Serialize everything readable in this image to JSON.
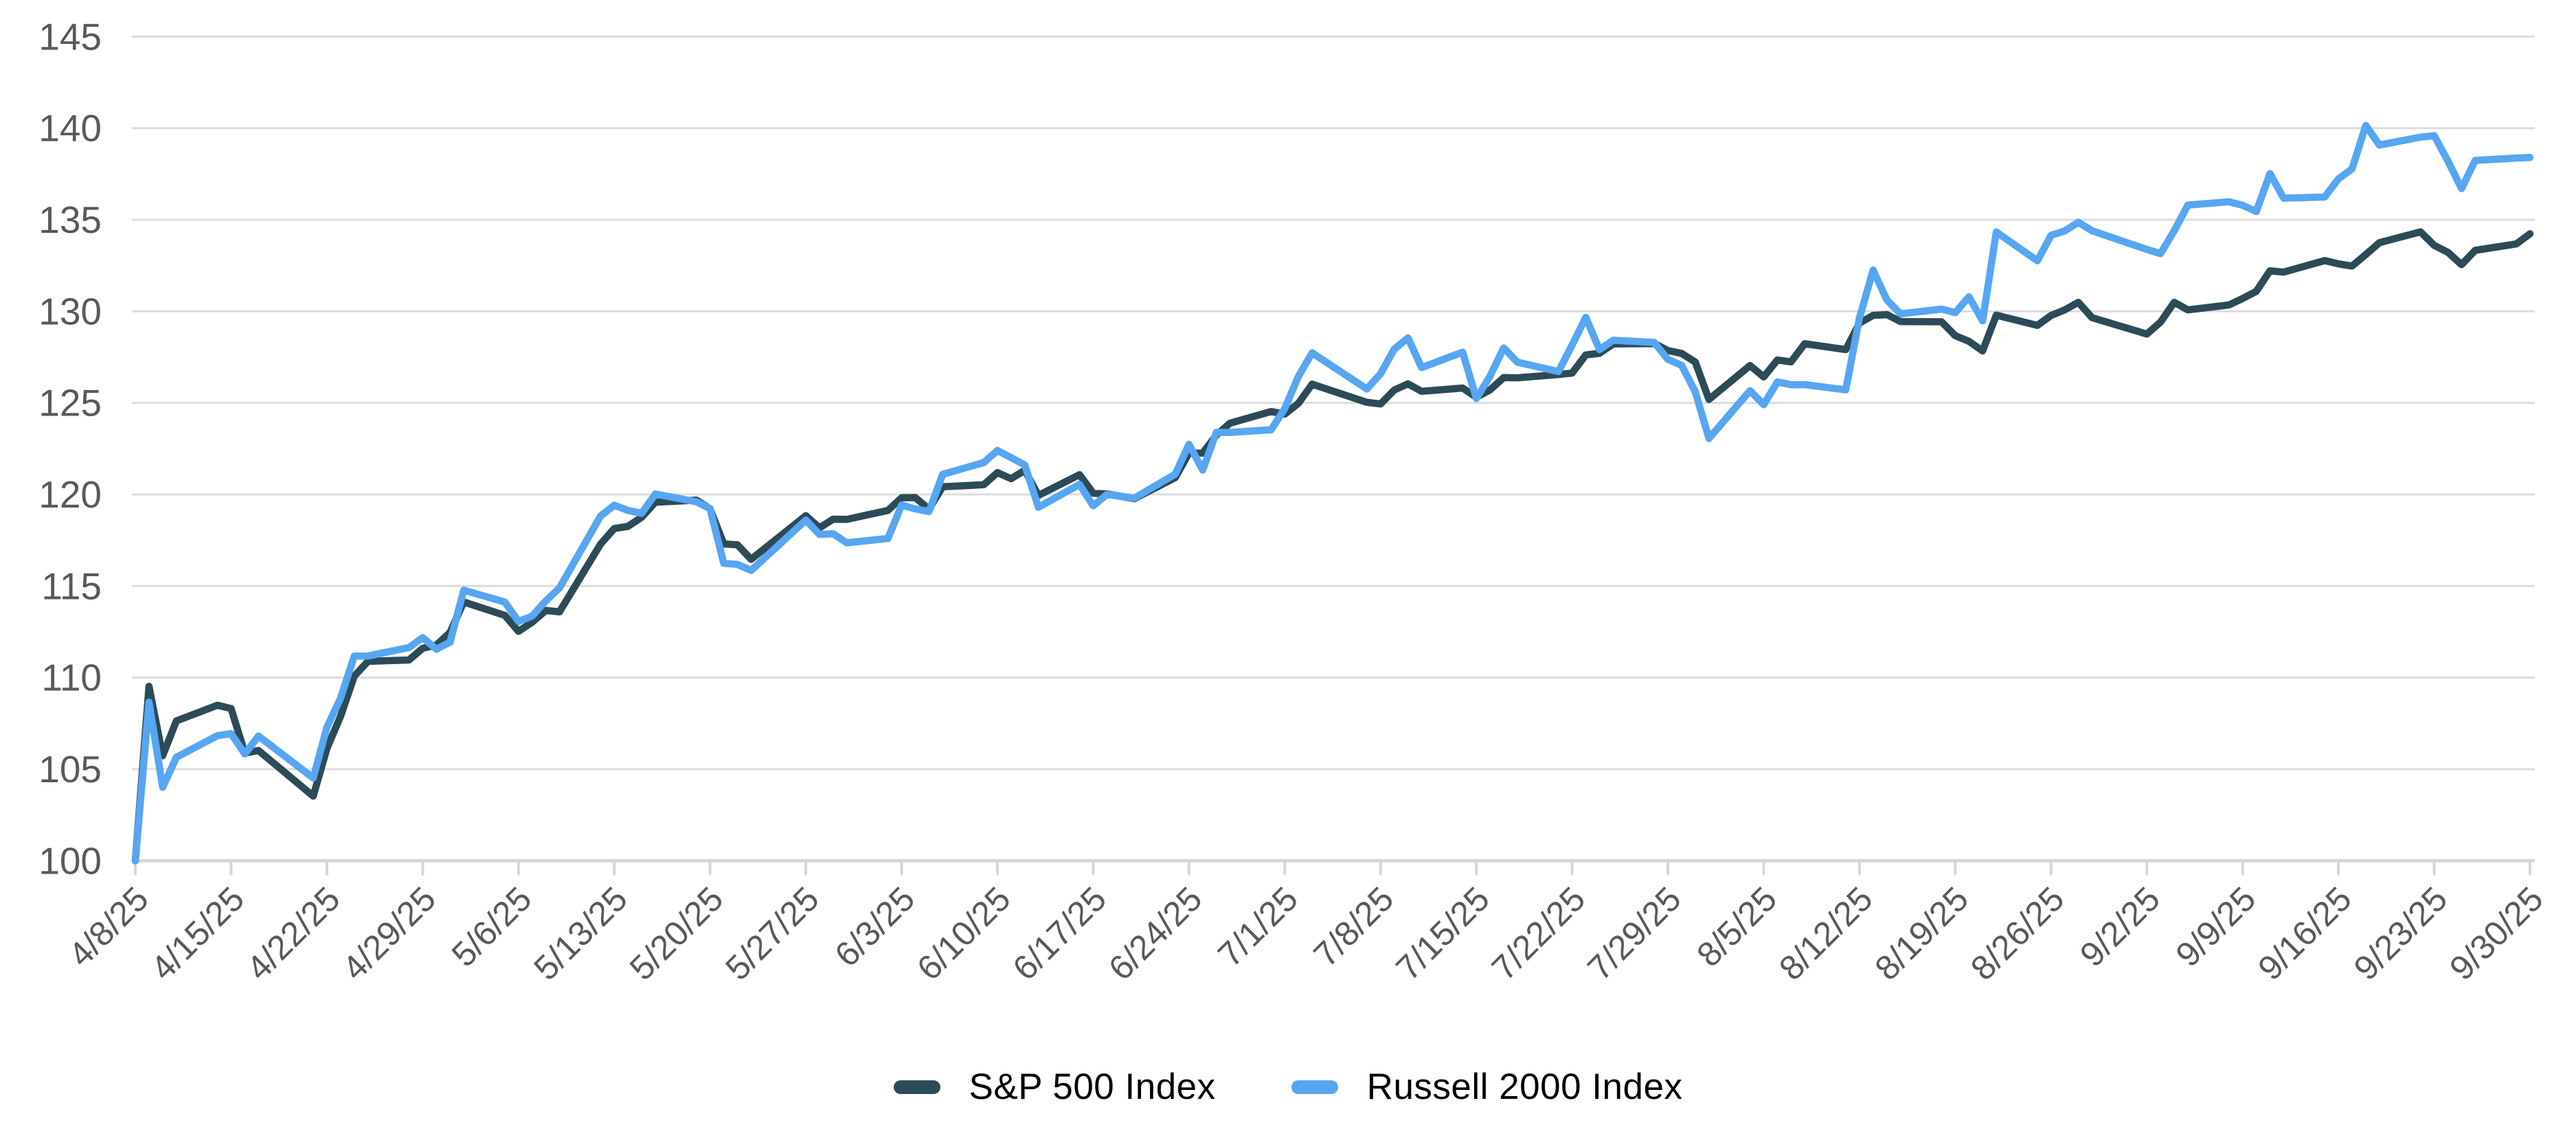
{
  "chart_data": {
    "type": "line",
    "title": "",
    "xlabel": "",
    "ylabel": "",
    "ylim": [
      100,
      145
    ],
    "y_ticks": [
      100,
      105,
      110,
      115,
      120,
      125,
      130,
      135,
      140,
      145
    ],
    "grid": true,
    "legend_position": "bottom",
    "x_tick_labels": [
      "4/8/25",
      "4/15/25",
      "4/22/25",
      "4/29/25",
      "5/6/25",
      "5/13/25",
      "5/20/25",
      "5/27/25",
      "6/3/25",
      "6/10/25",
      "6/17/25",
      "6/24/25",
      "7/1/25",
      "7/8/25",
      "7/15/25",
      "7/22/25",
      "7/29/25",
      "8/5/25",
      "8/12/25",
      "8/19/25",
      "8/26/25",
      "9/2/25",
      "9/9/25",
      "9/16/25",
      "9/23/25",
      "9/30/25"
    ],
    "categories": [
      "4/8/25",
      "4/9/25",
      "4/10/25",
      "4/11/25",
      "4/14/25",
      "4/15/25",
      "4/16/25",
      "4/17/25",
      "4/21/25",
      "4/22/25",
      "4/23/25",
      "4/24/25",
      "4/25/25",
      "4/28/25",
      "4/29/25",
      "4/30/25",
      "5/1/25",
      "5/2/25",
      "5/5/25",
      "5/6/25",
      "5/7/25",
      "5/8/25",
      "5/9/25",
      "5/12/25",
      "5/13/25",
      "5/14/25",
      "5/15/25",
      "5/16/25",
      "5/19/25",
      "5/20/25",
      "5/21/25",
      "5/22/25",
      "5/23/25",
      "5/27/25",
      "5/28/25",
      "5/29/25",
      "5/30/25",
      "6/2/25",
      "6/3/25",
      "6/4/25",
      "6/5/25",
      "6/6/25",
      "6/9/25",
      "6/10/25",
      "6/11/25",
      "6/12/25",
      "6/13/25",
      "6/16/25",
      "6/17/25",
      "6/18/25",
      "6/20/25",
      "6/23/25",
      "6/24/25",
      "6/25/25",
      "6/26/25",
      "6/27/25",
      "6/30/25",
      "7/1/25",
      "7/2/25",
      "7/3/25",
      "7/7/25",
      "7/8/25",
      "7/9/25",
      "7/10/25",
      "7/11/25",
      "7/14/25",
      "7/15/25",
      "7/16/25",
      "7/17/25",
      "7/18/25",
      "7/21/25",
      "7/22/25",
      "7/23/25",
      "7/24/25",
      "7/25/25",
      "7/28/25",
      "7/29/25",
      "7/30/25",
      "7/31/25",
      "8/1/25",
      "8/4/25",
      "8/5/25",
      "8/6/25",
      "8/7/25",
      "8/8/25",
      "8/11/25",
      "8/12/25",
      "8/13/25",
      "8/14/25",
      "8/15/25",
      "8/18/25",
      "8/19/25",
      "8/20/25",
      "8/21/25",
      "8/22/25",
      "8/25/25",
      "8/26/25",
      "8/27/25",
      "8/28/25",
      "8/29/25",
      "9/2/25",
      "9/3/25",
      "9/4/25",
      "9/5/25",
      "9/8/25",
      "9/9/25",
      "9/10/25",
      "9/11/25",
      "9/12/25",
      "9/15/25",
      "9/16/25",
      "9/17/25",
      "9/18/25",
      "9/19/25",
      "9/22/25",
      "9/23/25",
      "9/24/25",
      "9/25/25",
      "9/26/25",
      "9/29/25",
      "9/30/25"
    ],
    "series": [
      {
        "name": "S&P 500 Index",
        "color": "#2c4b57",
        "values": [
          100,
          109.52,
          105.73,
          107.64,
          108.49,
          108.31,
          105.88,
          106.02,
          103.53,
          106.13,
          107.89,
          110.08,
          110.89,
          110.96,
          111.6,
          111.77,
          112.47,
          114.13,
          113.4,
          112.53,
          113.02,
          113.67,
          113.59,
          117.29,
          118.14,
          118.26,
          118.75,
          119.58,
          119.69,
          119.22,
          117.3,
          117.25,
          116.46,
          118.84,
          118.18,
          118.65,
          118.64,
          119.13,
          119.82,
          119.83,
          119.2,
          120.42,
          120.53,
          121.19,
          120.86,
          121.32,
          119.95,
          121.08,
          120.07,
          120.03,
          119.77,
          120.92,
          122.26,
          122.26,
          123.24,
          123.89,
          124.53,
          124.39,
          124.98,
          126.02,
          125.03,
          124.94,
          125.7,
          126.04,
          125.63,
          125.81,
          125.31,
          125.71,
          126.38,
          126.37,
          126.55,
          126.63,
          127.62,
          127.71,
          128.22,
          128.24,
          127.86,
          127.7,
          127.23,
          125.19,
          127.04,
          126.42,
          127.34,
          127.24,
          128.23,
          127.91,
          129.36,
          129.78,
          129.82,
          129.44,
          129.43,
          128.67,
          128.36,
          127.84,
          129.79,
          129.23,
          129.77,
          130.08,
          130.49,
          129.65,
          128.76,
          129.41,
          130.49,
          130.08,
          130.35,
          130.7,
          131.09,
          132.21,
          132.14,
          132.77,
          132.59,
          132.47,
          133.1,
          133.75,
          134.34,
          133.6,
          133.22,
          132.55,
          133.33,
          133.68,
          134.23
        ]
      },
      {
        "name": "Russell 2000 Index",
        "color": "#56a6f2",
        "values": [
          100,
          108.66,
          104.01,
          105.65,
          106.83,
          106.94,
          105.83,
          106.81,
          104.52,
          107.29,
          108.88,
          111.17,
          111.18,
          111.64,
          112.18,
          111.55,
          111.94,
          114.77,
          114.13,
          113.07,
          113.36,
          114.19,
          114.9,
          118.82,
          119.41,
          119.13,
          118.97,
          120.02,
          119.6,
          119.23,
          116.24,
          116.18,
          115.85,
          118.6,
          117.82,
          117.85,
          117.36,
          117.6,
          119.42,
          119.21,
          119.07,
          121.1,
          121.74,
          122.4,
          122.01,
          121.61,
          119.3,
          120.55,
          119.38,
          120,
          119.8,
          121.11,
          122.74,
          121.33,
          123.39,
          123.39,
          123.53,
          124.69,
          126.45,
          127.73,
          125.76,
          126.59,
          127.93,
          128.55,
          126.93,
          127.77,
          125.24,
          126.46,
          128,
          127.22,
          126.71,
          128.16,
          129.67,
          127.91,
          128.42,
          128.3,
          127.38,
          127.05,
          125.61,
          123.06,
          125.67,
          124.9,
          126.14,
          125.99,
          126,
          125.71,
          129.64,
          132.25,
          130.62,
          129.86,
          130.12,
          129.93,
          130.79,
          129.48,
          134.33,
          132.76,
          134.15,
          134.39,
          134.86,
          134.4,
          133.38,
          133.15,
          134.4,
          135.8,
          135.98,
          135.79,
          135.45,
          137.52,
          136.18,
          136.24,
          137.23,
          137.78,
          140.15,
          139.08,
          139.51,
          139.59,
          138.21,
          136.7,
          138.24,
          138.37,
          138.4
        ]
      }
    ],
    "style": {
      "grid_color": "#dcdcdc",
      "axis_line_color": "#d6d6d6",
      "tick_color": "#d6d6d6",
      "axis_label_color": "#595959",
      "legend_text_color": "#000000",
      "background": "#ffffff"
    }
  },
  "legend": {
    "items": [
      {
        "label": "S&P 500 Index",
        "color": "#2c4b57"
      },
      {
        "label": "Russell 2000 Index",
        "color": "#56a6f2"
      }
    ]
  }
}
